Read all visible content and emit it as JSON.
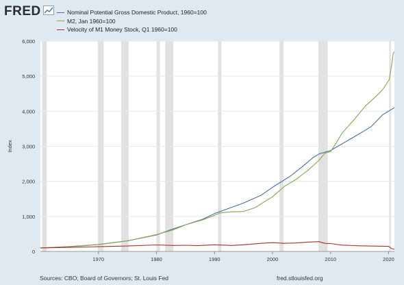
{
  "logo": {
    "text": "FRED",
    "icon": "line-chart-icon"
  },
  "footer": {
    "source": "Sources: CBO; Board of Governors; St. Louis Fed",
    "site": "fred.stlouisfed.org"
  },
  "colors": {
    "background": "#e1e9f0",
    "plot": "#ffffff",
    "recession": "#e1e1e1",
    "grid": "#e8e8e8"
  },
  "chart_data": {
    "type": "line",
    "title": "",
    "xlabel": "",
    "ylabel": "Index",
    "xlim": [
      1960,
      2021
    ],
    "ylim": [
      0,
      6000
    ],
    "xticks": [
      1970,
      1980,
      1990,
      2000,
      2010,
      2020
    ],
    "yticks": [
      0,
      1000,
      2000,
      3000,
      4000,
      5000,
      6000
    ],
    "ytick_labels": [
      "0",
      "1,000",
      "2,000",
      "3,000",
      "4,000",
      "5,000",
      "6,000"
    ],
    "grid": true,
    "legend_position": "top-left",
    "recessions": [
      [
        1960.3,
        1961.1
      ],
      [
        1969.9,
        1970.9
      ],
      [
        1973.9,
        1975.2
      ],
      [
        1980.0,
        1980.6
      ],
      [
        1981.5,
        1982.9
      ],
      [
        1990.6,
        1991.2
      ],
      [
        2001.2,
        2001.9
      ],
      [
        2007.9,
        2009.5
      ],
      [
        2020.1,
        2020.4
      ]
    ],
    "series": [
      {
        "name": "Nominal Potential Gross Domestic Product, 1960=100",
        "color": "#4572a7",
        "points": [
          [
            1960,
            100
          ],
          [
            1965,
            135
          ],
          [
            1970,
            195
          ],
          [
            1975,
            300
          ],
          [
            1980,
            470
          ],
          [
            1983,
            650
          ],
          [
            1985,
            760
          ],
          [
            1988,
            920
          ],
          [
            1990,
            1080
          ],
          [
            1993,
            1260
          ],
          [
            1995,
            1380
          ],
          [
            1998,
            1600
          ],
          [
            2000,
            1830
          ],
          [
            2003,
            2140
          ],
          [
            2005,
            2400
          ],
          [
            2007,
            2680
          ],
          [
            2008,
            2780
          ],
          [
            2010,
            2880
          ],
          [
            2012,
            3070
          ],
          [
            2015,
            3360
          ],
          [
            2017,
            3560
          ],
          [
            2019,
            3900
          ],
          [
            2021,
            4100
          ]
        ]
      },
      {
        "name": "M2, Jan 1960=100",
        "color": "#89a54e",
        "points": [
          [
            1960,
            100
          ],
          [
            1965,
            140
          ],
          [
            1970,
            200
          ],
          [
            1975,
            300
          ],
          [
            1980,
            480
          ],
          [
            1983,
            620
          ],
          [
            1985,
            760
          ],
          [
            1988,
            900
          ],
          [
            1990,
            1030
          ],
          [
            1991,
            1100
          ],
          [
            1993,
            1130
          ],
          [
            1995,
            1140
          ],
          [
            1997,
            1250
          ],
          [
            2000,
            1560
          ],
          [
            2002,
            1850
          ],
          [
            2004,
            2050
          ],
          [
            2006,
            2300
          ],
          [
            2008,
            2600
          ],
          [
            2009,
            2800
          ],
          [
            2010,
            2850
          ],
          [
            2011,
            3100
          ],
          [
            2012,
            3380
          ],
          [
            2014,
            3750
          ],
          [
            2016,
            4150
          ],
          [
            2018,
            4450
          ],
          [
            2019,
            4620
          ],
          [
            2020.1,
            4900
          ],
          [
            2020.5,
            5300
          ],
          [
            2020.8,
            5650
          ],
          [
            2021,
            5700
          ]
        ]
      },
      {
        "name": "Velocity of M1 Money Stock, Q1 1960=100",
        "color": "#aa2d2d",
        "points": [
          [
            1960,
            100
          ],
          [
            1965,
            115
          ],
          [
            1970,
            135
          ],
          [
            1975,
            155
          ],
          [
            1980,
            185
          ],
          [
            1983,
            170
          ],
          [
            1985,
            175
          ],
          [
            1987,
            165
          ],
          [
            1990,
            190
          ],
          [
            1993,
            170
          ],
          [
            1995,
            190
          ],
          [
            1998,
            230
          ],
          [
            2000,
            250
          ],
          [
            2002,
            230
          ],
          [
            2004,
            240
          ],
          [
            2006,
            265
          ],
          [
            2008,
            280
          ],
          [
            2009,
            230
          ],
          [
            2010,
            225
          ],
          [
            2012,
            180
          ],
          [
            2015,
            160
          ],
          [
            2018,
            150
          ],
          [
            2020,
            145
          ],
          [
            2020.5,
            80
          ],
          [
            2021,
            60
          ]
        ]
      }
    ]
  }
}
